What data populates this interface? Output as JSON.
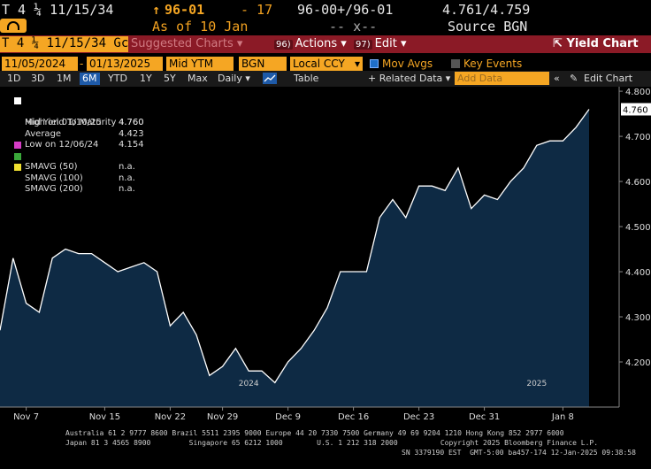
{
  "header": {
    "ticker": "T 4 ¼ 11/15/34",
    "price_arrow": "↑",
    "price": "96-01",
    "change": "- 17",
    "bid_ask": "96-00+/96-01",
    "yields": "4.761/4.759",
    "as_of": "As of 10 Jan",
    "size": "-- x--",
    "source": "Source BGN"
  },
  "cmdbar": {
    "security": "T 4 ¼ 11/15/34 Gc",
    "suggested": "Suggested Charts",
    "actions_num": "96)",
    "actions": "Actions",
    "edit_num": "97)",
    "edit": "Edit",
    "title": "Yield Chart"
  },
  "params": {
    "start_date": "11/05/2024",
    "end_date": "01/13/2025",
    "field": "Mid YTM",
    "source": "BGN",
    "currency": "Local CCY",
    "mov_avgs": "Mov Avgs",
    "key_events": "Key Events"
  },
  "toolbar": {
    "ranges": [
      "1D",
      "3D",
      "1M",
      "6M",
      "YTD",
      "1Y",
      "5Y",
      "Max"
    ],
    "active_range": "6M",
    "frequency": "Daily",
    "table": "Table",
    "related": "+ Related Data",
    "add_placeholder": "Add Data",
    "edit_chart": "Edit Chart"
  },
  "legend": [
    {
      "label": "Mid Yield To Maturity",
      "value": "4.760",
      "color": "#ffffff"
    },
    {
      "label": "High on 01/10/25",
      "value": "4.760"
    },
    {
      "label": "Average",
      "value": "4.423"
    },
    {
      "label": "Low on 12/06/24",
      "value": "4.154"
    },
    {
      "label": "SMAVG (50)",
      "value": "n.a.",
      "color": "#d63cc6"
    },
    {
      "label": "SMAVG (100)",
      "value": "n.a.",
      "color": "#3aa83a"
    },
    {
      "label": "SMAVG (200)",
      "value": "n.a.",
      "color": "#f0e030"
    }
  ],
  "chart_data": {
    "type": "area",
    "title": "",
    "xlabel": "",
    "ylabel": "",
    "ylim": [
      4.1,
      4.81
    ],
    "yticks": [
      "4.800",
      "4.700",
      "4.600",
      "4.500",
      "4.400",
      "4.300",
      "4.200"
    ],
    "xticks": [
      "Nov 7",
      "Nov 15",
      "Nov 22",
      "Nov 29",
      "Dec 9",
      "Dec 16",
      "Dec 23",
      "Dec 31",
      "Jan 8"
    ],
    "year_labels": [
      "2024",
      "2025"
    ],
    "last_value_label": "4.760",
    "series": [
      {
        "name": "Mid Yield To Maturity",
        "color": "#ffffff",
        "fill": "#0e2a44",
        "x": [
          "11/05",
          "11/06",
          "11/07",
          "11/08",
          "11/11",
          "11/12",
          "11/13",
          "11/14",
          "11/15",
          "11/18",
          "11/19",
          "11/20",
          "11/21",
          "11/22",
          "11/25",
          "11/26",
          "11/27",
          "11/29",
          "12/02",
          "12/03",
          "12/04",
          "12/05",
          "12/06",
          "12/09",
          "12/10",
          "12/11",
          "12/12",
          "12/13",
          "12/16",
          "12/17",
          "12/18",
          "12/19",
          "12/20",
          "12/23",
          "12/24",
          "12/26",
          "12/27",
          "12/30",
          "12/31",
          "01/02",
          "01/03",
          "01/06",
          "01/07",
          "01/08",
          "01/09",
          "01/10"
        ],
        "values": [
          4.27,
          4.43,
          4.33,
          4.31,
          4.43,
          4.45,
          4.44,
          4.44,
          4.42,
          4.4,
          4.41,
          4.42,
          4.4,
          4.28,
          4.31,
          4.26,
          4.17,
          4.19,
          4.23,
          4.18,
          4.18,
          4.154,
          4.2,
          4.23,
          4.27,
          4.32,
          4.4,
          4.4,
          4.4,
          4.52,
          4.56,
          4.52,
          4.59,
          4.59,
          4.58,
          4.63,
          4.54,
          4.57,
          4.56,
          4.6,
          4.63,
          4.68,
          4.69,
          4.69,
          4.72,
          4.76
        ]
      }
    ]
  },
  "footer": {
    "line1": "Australia 61 2 9777 8600 Brazil 5511 2395 9000 Europe 44 20 7330 7500 Germany 49 69 9204 1210 Hong Kong 852 2977 6000",
    "line2": "Japan 81 3 4565 8900         Singapore 65 6212 1000        U.S. 1 212 318 2000          Copyright 2025 Bloomberg Finance L.P.",
    "line3": "SN 3379190 EST  GMT-5:00 ba457-174 12-Jan-2025 09:38:58"
  }
}
